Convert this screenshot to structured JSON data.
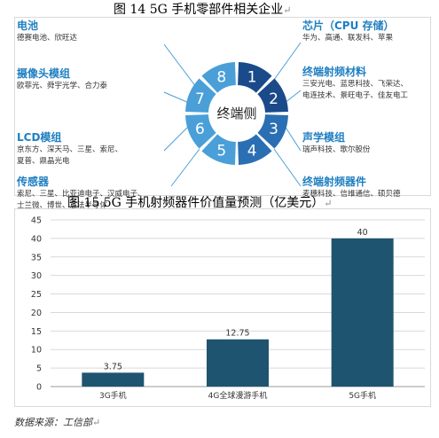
{
  "fig14": {
    "title": "图 14   5G 手机零部件相关企业",
    "center_label": "终端侧",
    "segments": [
      "1",
      "2",
      "3",
      "4",
      "5",
      "6",
      "7",
      "8"
    ],
    "groups": [
      {
        "title": "电池",
        "items": [
          "德赛电池、欣旺达"
        ]
      },
      {
        "title": "摄像头模组",
        "items": [
          "欧菲光、舜宇光学、合力泰"
        ]
      },
      {
        "title": "LCD模组",
        "items": [
          "京东方、深天马、三星、索尼、",
          "夏普、鼎晶光电"
        ]
      },
      {
        "title": "传感器",
        "items": [
          "索尼、三星、比亚迪电子、汉威电子、",
          "士兰微、博世、意法半导体"
        ]
      },
      {
        "title": "芯片（CPU 存储）",
        "items": [
          "华为、高通、联发科、苹果"
        ]
      },
      {
        "title": "终端射频材料",
        "items": [
          "三安光电、蓝思科技、飞荣达、",
          "电连技术、景旺电子、佳友电工"
        ]
      },
      {
        "title": "声学模组",
        "items": [
          "瑞声科技、歌尔股份"
        ]
      },
      {
        "title": "终端射频器件",
        "items": [
          "麦穗科技、信维通信、硕贝德"
        ]
      }
    ]
  },
  "fig15": {
    "title": "图 15    5G 手机射频器件价值量预测（亿美元）"
  },
  "chart_data": {
    "type": "bar",
    "categories": [
      "3G手机",
      "4G全球漫游手机",
      "5G手机"
    ],
    "values": [
      3.75,
      12.75,
      40
    ],
    "data_labels": [
      "3.75",
      "12.75",
      "40"
    ],
    "ylim": [
      0,
      45
    ],
    "yticks": [
      0,
      5,
      10,
      15,
      20,
      25,
      30,
      35,
      40,
      45
    ],
    "grid": true,
    "bar_color": "#1e5470"
  },
  "source": "数据来源：工信部",
  "colors": {
    "segment_dark": "#1a4a8a",
    "segment_mid": "#2a6fb3",
    "segment_light": "#4a9fd8",
    "group_title": "#1f7fc1"
  }
}
